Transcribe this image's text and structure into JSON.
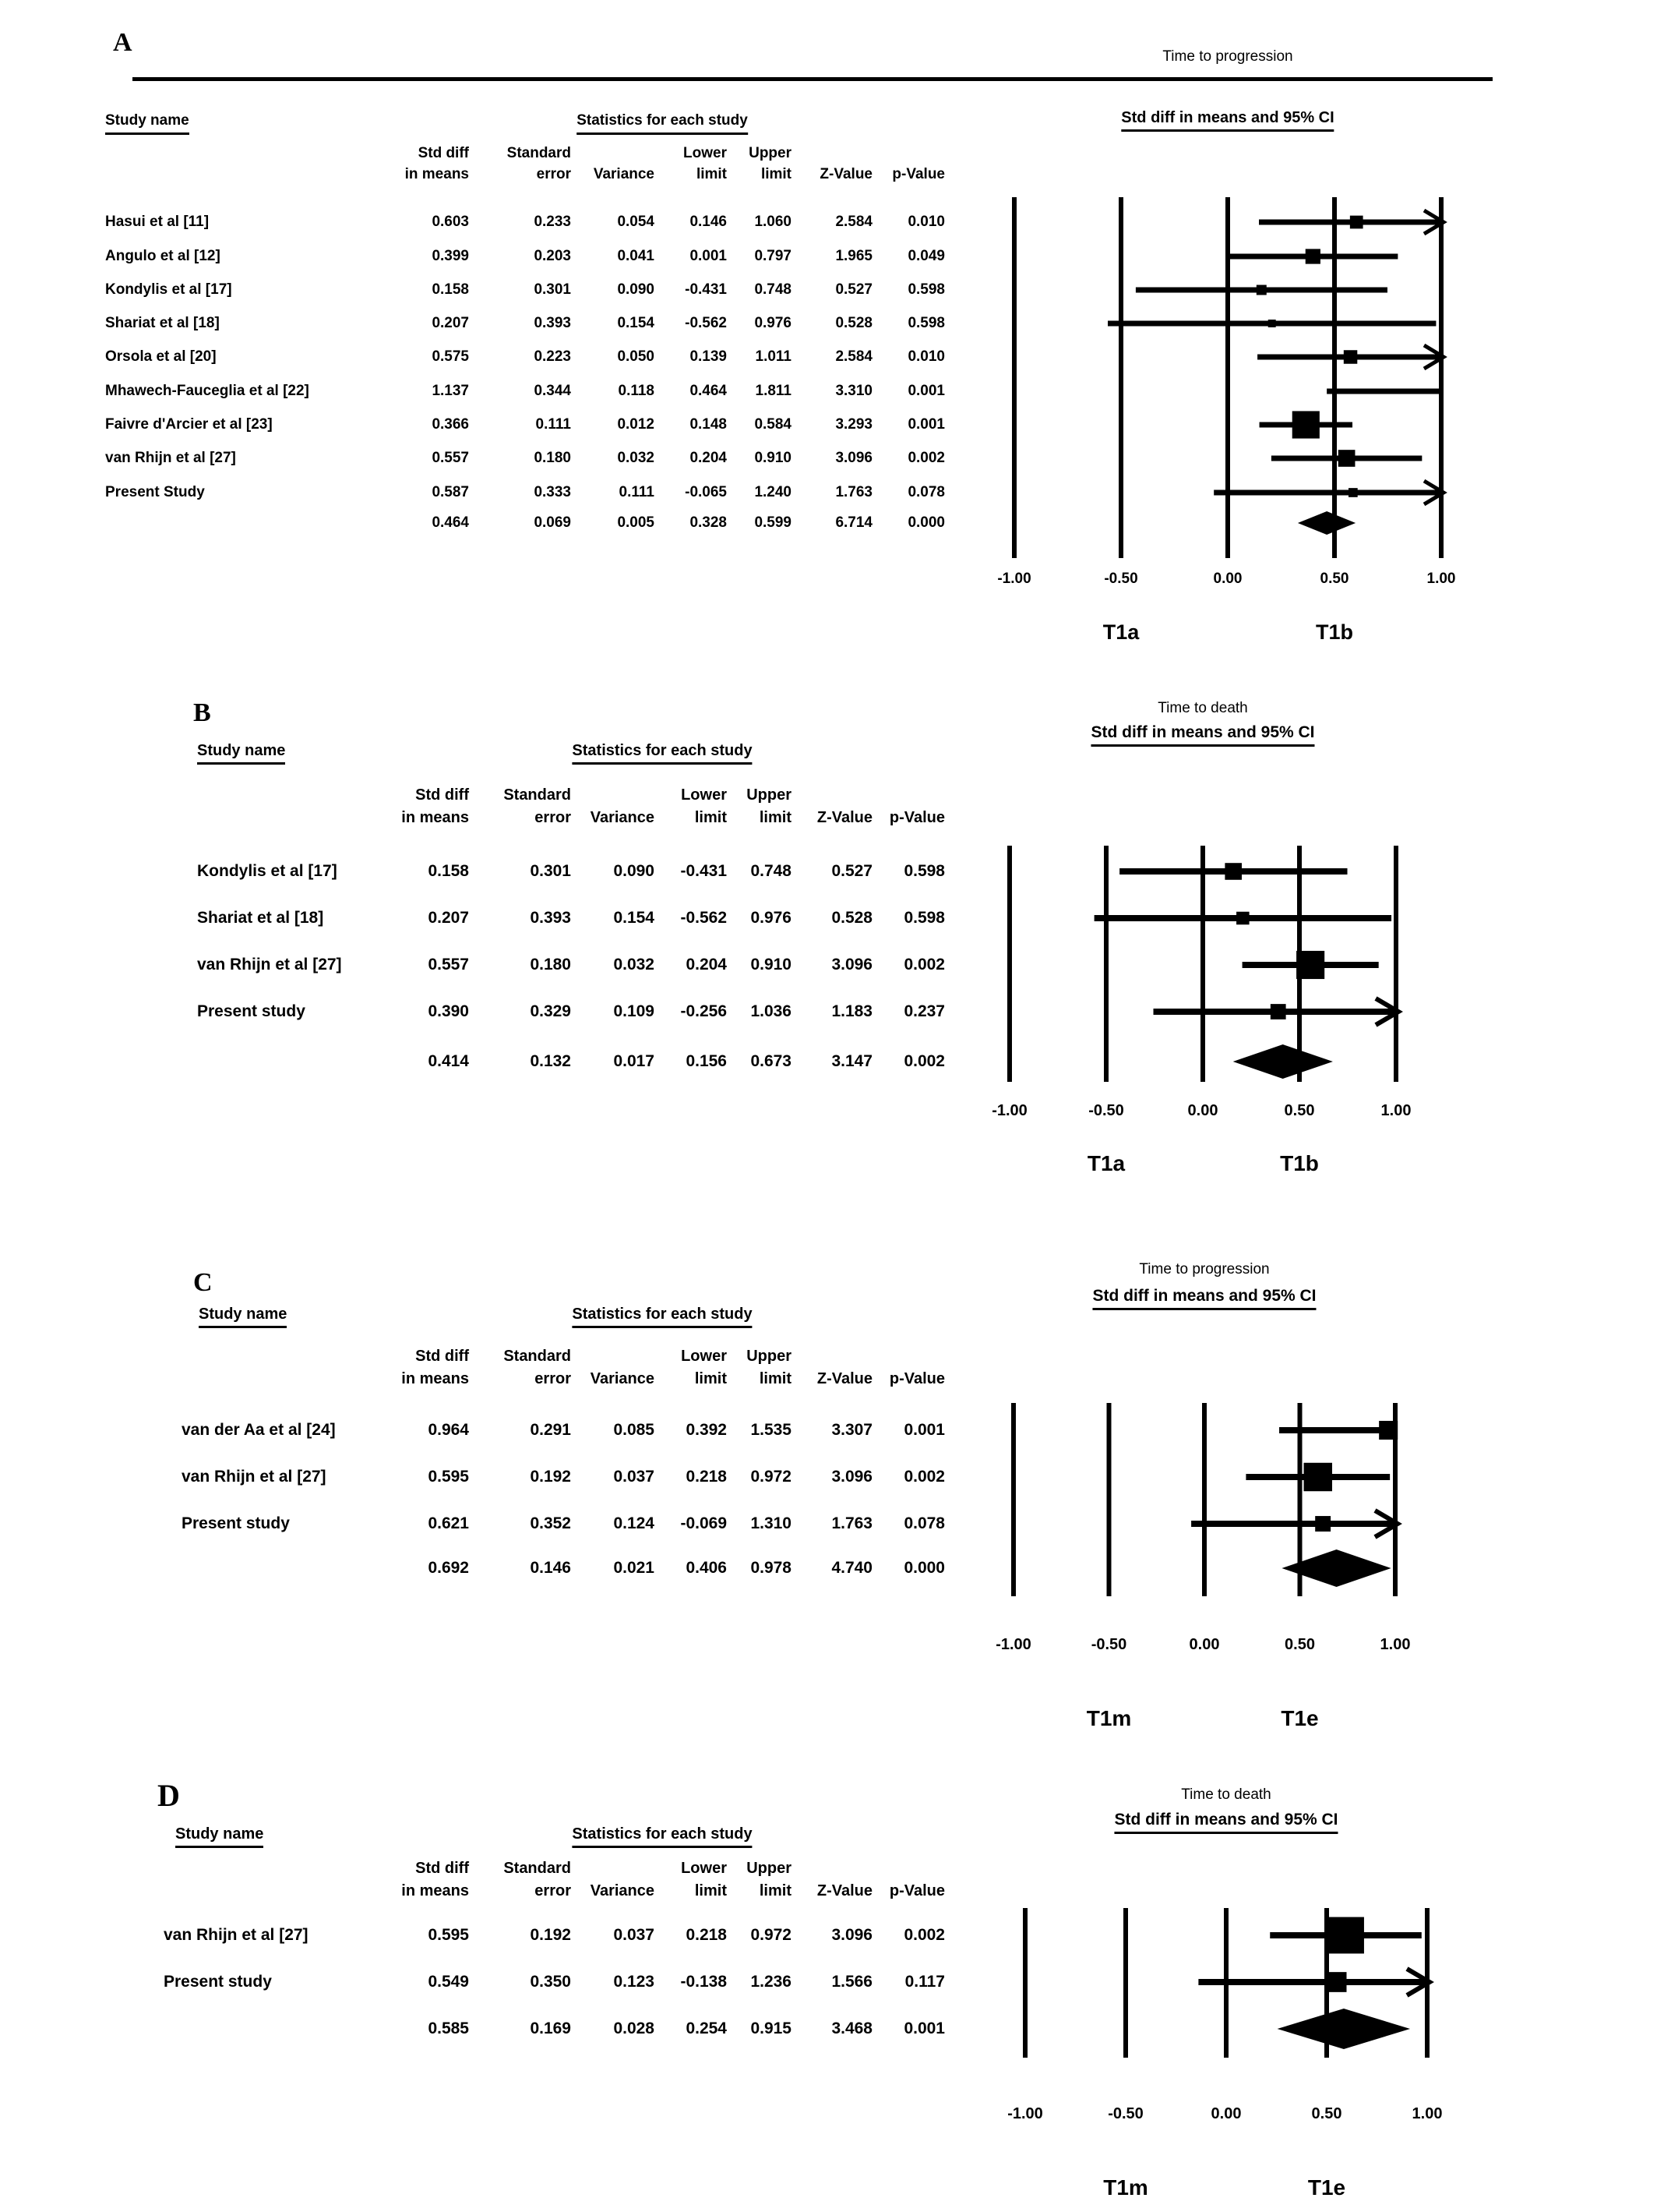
{
  "figure": {
    "study_name_header": "Study name",
    "stats_header": "Statistics for each study",
    "col_line1": [
      "Std diff",
      "Standard",
      "",
      "Lower",
      "Upper",
      "",
      ""
    ],
    "col_line2": [
      "in means",
      "error",
      "Variance",
      "limit",
      "limit",
      "Z-Value",
      "p-Value"
    ],
    "ink_color": "#000000",
    "background_color": "#ffffff"
  },
  "chart_data": [
    {
      "type": "forest",
      "panel_label": "A",
      "effect_title": "Time to progression",
      "ci_axis_header": "Std diff in means and 95% CI",
      "xlim": [
        -1,
        1
      ],
      "axis_ticks": [
        "-1.00",
        "-0.50",
        "0.00",
        "0.50",
        "1.00"
      ],
      "group_labels": [
        "T1a",
        "T1b"
      ],
      "group_label_positions": [
        -0.5,
        0.5
      ],
      "studies": [
        {
          "name": "Hasui et al [11]",
          "std_diff": "0.603",
          "std_err": "0.233",
          "variance": "0.054",
          "lower": "0.146",
          "upper": "1.060",
          "z": "2.584",
          "p": "0.010"
        },
        {
          "name": "Angulo et al [12]",
          "std_diff": "0.399",
          "std_err": "0.203",
          "variance": "0.041",
          "lower": "0.001",
          "upper": "0.797",
          "z": "1.965",
          "p": "0.049"
        },
        {
          "name": "Kondylis et al [17]",
          "std_diff": "0.158",
          "std_err": "0.301",
          "variance": "0.090",
          "lower": "-0.431",
          "upper": "0.748",
          "z": "0.527",
          "p": "0.598"
        },
        {
          "name": "Shariat et al [18]",
          "std_diff": "0.207",
          "std_err": "0.393",
          "variance": "0.154",
          "lower": "-0.562",
          "upper": "0.976",
          "z": "0.528",
          "p": "0.598"
        },
        {
          "name": "Orsola et al [20]",
          "std_diff": "0.575",
          "std_err": "0.223",
          "variance": "0.050",
          "lower": "0.139",
          "upper": "1.011",
          "z": "2.584",
          "p": "0.010"
        },
        {
          "name": "Mhawech-Fauceglia et al [22]",
          "std_diff": "1.137",
          "std_err": "0.344",
          "variance": "0.118",
          "lower": "0.464",
          "upper": "1.811",
          "z": "3.310",
          "p": "0.001"
        },
        {
          "name": "Faivre d'Arcier et al [23]",
          "std_diff": "0.366",
          "std_err": "0.111",
          "variance": "0.012",
          "lower": "0.148",
          "upper": "0.584",
          "z": "3.293",
          "p": "0.001"
        },
        {
          "name": "van Rhijn et al [27]",
          "std_diff": "0.557",
          "std_err": "0.180",
          "variance": "0.032",
          "lower": "0.204",
          "upper": "0.910",
          "z": "3.096",
          "p": "0.002"
        },
        {
          "name": "Present Study",
          "std_diff": "0.587",
          "std_err": "0.333",
          "variance": "0.111",
          "lower": "-0.065",
          "upper": "1.240",
          "z": "1.763",
          "p": "0.078"
        }
      ],
      "summary": {
        "std_diff": "0.464",
        "std_err": "0.069",
        "variance": "0.005",
        "lower": "0.328",
        "upper": "0.599",
        "z": "6.714",
        "p": "0.000"
      }
    },
    {
      "type": "forest",
      "panel_label": "B",
      "effect_title": "Time to death",
      "ci_axis_header": "Std diff in means and 95% CI",
      "xlim": [
        -1,
        1
      ],
      "axis_ticks": [
        "-1.00",
        "-0.50",
        "0.00",
        "0.50",
        "1.00"
      ],
      "group_labels": [
        "T1a",
        "T1b"
      ],
      "group_label_positions": [
        -0.5,
        0.5
      ],
      "studies": [
        {
          "name": "Kondylis et al [17]",
          "std_diff": "0.158",
          "std_err": "0.301",
          "variance": "0.090",
          "lower": "-0.431",
          "upper": "0.748",
          "z": "0.527",
          "p": "0.598"
        },
        {
          "name": "Shariat et al [18]",
          "std_diff": "0.207",
          "std_err": "0.393",
          "variance": "0.154",
          "lower": "-0.562",
          "upper": "0.976",
          "z": "0.528",
          "p": "0.598"
        },
        {
          "name": "van Rhijn et al [27]",
          "std_diff": "0.557",
          "std_err": "0.180",
          "variance": "0.032",
          "lower": "0.204",
          "upper": "0.910",
          "z": "3.096",
          "p": "0.002"
        },
        {
          "name": "Present study",
          "std_diff": "0.390",
          "std_err": "0.329",
          "variance": "0.109",
          "lower": "-0.256",
          "upper": "1.036",
          "z": "1.183",
          "p": "0.237"
        }
      ],
      "summary": {
        "std_diff": "0.414",
        "std_err": "0.132",
        "variance": "0.017",
        "lower": "0.156",
        "upper": "0.673",
        "z": "3.147",
        "p": "0.002"
      }
    },
    {
      "type": "forest",
      "panel_label": "C",
      "effect_title": "Time to progression",
      "ci_axis_header": "Std diff in means and 95% CI",
      "xlim": [
        -1,
        1
      ],
      "axis_ticks": [
        "-1.00",
        "-0.50",
        "0.00",
        "0.50",
        "1.00"
      ],
      "group_labels": [
        "T1m",
        "T1e"
      ],
      "group_label_positions": [
        -0.5,
        0.5
      ],
      "studies": [
        {
          "name": "van der Aa et al [24]",
          "std_diff": "0.964",
          "std_err": "0.291",
          "variance": "0.085",
          "lower": "0.392",
          "upper": "1.535",
          "z": "3.307",
          "p": "0.001"
        },
        {
          "name": "van Rhijn et al [27]",
          "std_diff": "0.595",
          "std_err": "0.192",
          "variance": "0.037",
          "lower": "0.218",
          "upper": "0.972",
          "z": "3.096",
          "p": "0.002"
        },
        {
          "name": "Present study",
          "std_diff": "0.621",
          "std_err": "0.352",
          "variance": "0.124",
          "lower": "-0.069",
          "upper": "1.310",
          "z": "1.763",
          "p": "0.078"
        }
      ],
      "summary": {
        "std_diff": "0.692",
        "std_err": "0.146",
        "variance": "0.021",
        "lower": "0.406",
        "upper": "0.978",
        "z": "4.740",
        "p": "0.000"
      }
    },
    {
      "type": "forest",
      "panel_label": "D",
      "effect_title": "Time to death",
      "ci_axis_header": "Std diff in means and 95% CI",
      "xlim": [
        -1,
        1
      ],
      "axis_ticks": [
        "-1.00",
        "-0.50",
        "0.00",
        "0.50",
        "1.00"
      ],
      "group_labels": [
        "T1m",
        "T1e"
      ],
      "group_label_positions": [
        -0.5,
        0.5
      ],
      "studies": [
        {
          "name": "van Rhijn et al [27]",
          "std_diff": "0.595",
          "std_err": "0.192",
          "variance": "0.037",
          "lower": "0.218",
          "upper": "0.972",
          "z": "3.096",
          "p": "0.002"
        },
        {
          "name": "Present study",
          "std_diff": "0.549",
          "std_err": "0.350",
          "variance": "0.123",
          "lower": "-0.138",
          "upper": "1.236",
          "z": "1.566",
          "p": "0.117"
        }
      ],
      "summary": {
        "std_diff": "0.585",
        "std_err": "0.169",
        "variance": "0.028",
        "lower": "0.254",
        "upper": "0.915",
        "z": "3.468",
        "p": "0.001"
      }
    }
  ]
}
